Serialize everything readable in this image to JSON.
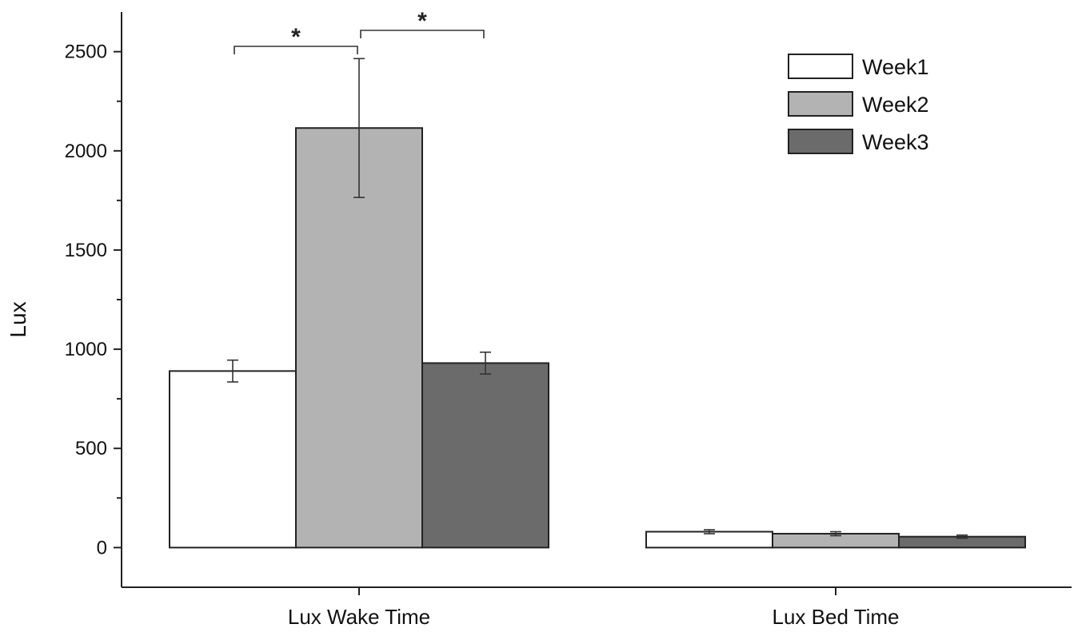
{
  "chart_data": {
    "type": "bar",
    "categories": [
      "Lux Wake Time",
      "Lux Bed Time"
    ],
    "series": [
      {
        "name": "Week1",
        "values": [
          890,
          80
        ],
        "errors": [
          55,
          10
        ],
        "color": "#ffffff"
      },
      {
        "name": "Week2",
        "values": [
          2115,
          70
        ],
        "errors": [
          350,
          10
        ],
        "color": "#b3b3b3"
      },
      {
        "name": "Week3",
        "values": [
          930,
          55
        ],
        "errors": [
          55,
          8
        ],
        "color": "#6b6b6b"
      }
    ],
    "title": "",
    "xlabel": "",
    "ylabel": "Lux",
    "ylim": [
      -200,
      2700
    ],
    "yticks": [
      0,
      500,
      1000,
      1500,
      2000,
      2500
    ],
    "legend": "top-right",
    "grid": false,
    "significance": [
      {
        "category": "Lux Wake Time",
        "from_series": "Week1",
        "to_series": "Week2",
        "label": "*"
      },
      {
        "category": "Lux Wake Time",
        "from_series": "Week2",
        "to_series": "Week3",
        "label": "*"
      }
    ]
  }
}
